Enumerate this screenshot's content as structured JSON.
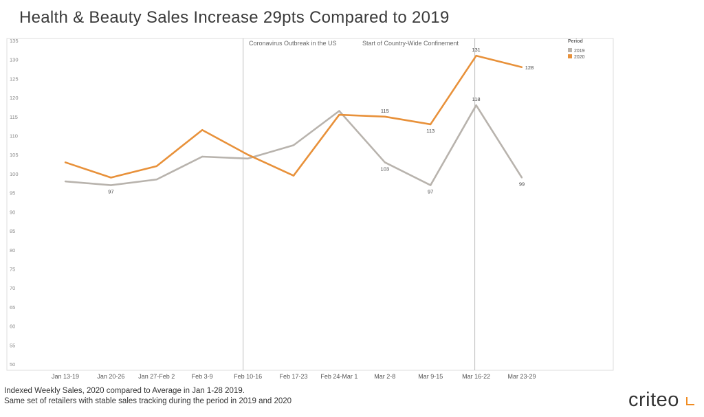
{
  "title": "Health & Beauty Sales Increase 29pts Compared to 2019",
  "footnotes": [
    "Indexed Weekly Sales, 2020 compared to Average in Jan 1-28 2019.",
    "Same set of retailers with stable sales tracking during the period in 2019 and 2020"
  ],
  "logo": {
    "text": "criteo",
    "mark_color": "#f08c22"
  },
  "chart_data": {
    "type": "line",
    "title": "Health & Beauty Sales Increase 29pts Compared to 2019",
    "xlabel": "",
    "ylabel": "",
    "categories": [
      "Jan 13-19",
      "Jan 20-26",
      "Jan 27-Feb 2",
      "Feb 3-9",
      "Feb 10-16",
      "Feb 17-23",
      "Feb 24-Mar 1",
      "Mar 2-8",
      "Mar 9-15",
      "Mar 16-22",
      "Mar 23-29"
    ],
    "ylim": [
      50,
      135
    ],
    "yticks": [
      50,
      55,
      60,
      65,
      70,
      75,
      80,
      85,
      90,
      95,
      100,
      105,
      110,
      115,
      120,
      125,
      130,
      135
    ],
    "grid": false,
    "series": [
      {
        "name": "2019",
        "color": "#b8b3ad",
        "values": [
          98,
          97,
          98.5,
          104.5,
          104,
          107.5,
          116.5,
          103,
          97,
          118,
          99
        ],
        "labels": [
          "",
          "97",
          "",
          "",
          "",
          "",
          "",
          "103",
          "97",
          "118",
          "99"
        ]
      },
      {
        "name": "2020",
        "color": "#e8913a",
        "values": [
          103,
          99,
          102,
          111.5,
          105,
          99.5,
          115.5,
          115,
          113,
          131,
          128
        ],
        "labels": [
          "",
          "",
          "",
          "",
          "",
          "",
          "",
          "115",
          "113",
          "131",
          "128"
        ]
      }
    ],
    "legend": {
      "title": "Period",
      "position": "top-right"
    },
    "annotations": [
      {
        "text": "Coronavirus Outbreak in the US",
        "category_index": 4
      },
      {
        "text": "Start of Country-Wide Confinement",
        "category_index": 9
      }
    ]
  }
}
